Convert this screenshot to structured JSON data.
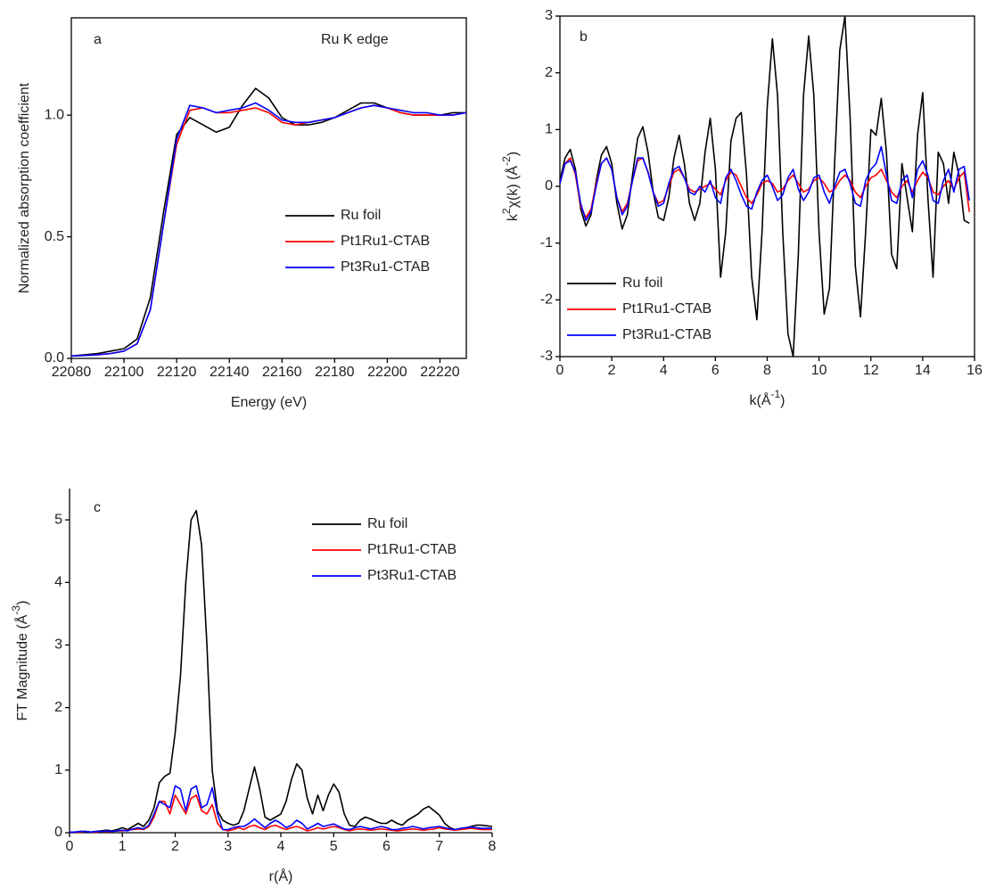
{
  "chart_data": [
    {
      "type": "line",
      "panel_label": "a",
      "annotation": "Ru K edge",
      "xlabel": "Energy (eV)",
      "ylabel": "Normalized absorption coefficient",
      "x": [
        22080,
        22085,
        22090,
        22095,
        22100,
        22105,
        22110,
        22115,
        22120,
        22125,
        22130,
        22135,
        22140,
        22145,
        22150,
        22155,
        22160,
        22165,
        22170,
        22175,
        22180,
        22185,
        22190,
        22195,
        22200,
        22205,
        22210,
        22215,
        22220,
        22225,
        22230
      ],
      "series": [
        {
          "name": "Ru foil",
          "color": "#000000",
          "values": [
            0.01,
            0.015,
            0.02,
            0.03,
            0.04,
            0.08,
            0.25,
            0.6,
            0.92,
            0.99,
            0.96,
            0.93,
            0.95,
            1.04,
            1.11,
            1.07,
            0.99,
            0.96,
            0.96,
            0.97,
            0.99,
            1.02,
            1.05,
            1.05,
            1.03,
            1.01,
            1.0,
            1.0,
            1.0,
            1.01,
            1.01
          ]
        },
        {
          "name": "Pt1Ru1-CTAB",
          "color": "#ff0000",
          "values": [
            0.01,
            0.012,
            0.015,
            0.02,
            0.03,
            0.06,
            0.2,
            0.55,
            0.88,
            1.02,
            1.03,
            1.01,
            1.01,
            1.02,
            1.03,
            1.01,
            0.97,
            0.96,
            0.97,
            0.98,
            0.99,
            1.01,
            1.03,
            1.04,
            1.03,
            1.01,
            1.0,
            1.0,
            1.0,
            1.0,
            1.01
          ]
        },
        {
          "name": "Pt3Ru1-CTAB",
          "color": "#0000ff",
          "values": [
            0.01,
            0.012,
            0.015,
            0.02,
            0.03,
            0.06,
            0.2,
            0.55,
            0.9,
            1.04,
            1.03,
            1.01,
            1.02,
            1.03,
            1.05,
            1.02,
            0.98,
            0.97,
            0.97,
            0.98,
            0.99,
            1.01,
            1.03,
            1.04,
            1.03,
            1.02,
            1.01,
            1.01,
            1.0,
            1.0,
            1.01
          ]
        }
      ],
      "xlim": [
        22080,
        22230
      ],
      "xticks": [
        22080,
        22100,
        22120,
        22140,
        22160,
        22180,
        22200,
        22220
      ],
      "ylim": [
        0,
        1.4
      ],
      "yticks": [
        {
          "value": 0,
          "label": "0.0"
        },
        {
          "value": 0.5,
          "label": "0.5"
        },
        {
          "value": 1,
          "label": "1.0"
        }
      ]
    },
    {
      "type": "line",
      "panel_label": "b",
      "xlabel": [
        "k(Å",
        "-1",
        ")"
      ],
      "ylabel": [
        "k",
        "2",
        "χ(k) (Å",
        "-2",
        ")"
      ],
      "x": [
        0,
        0.2,
        0.4,
        0.6,
        0.8,
        1.0,
        1.2,
        1.4,
        1.6,
        1.8,
        2.0,
        2.2,
        2.4,
        2.6,
        2.8,
        3.0,
        3.2,
        3.4,
        3.6,
        3.8,
        4.0,
        4.2,
        4.4,
        4.6,
        4.8,
        5.0,
        5.2,
        5.4,
        5.6,
        5.8,
        6.0,
        6.2,
        6.4,
        6.6,
        6.8,
        7.0,
        7.2,
        7.4,
        7.6,
        7.8,
        8.0,
        8.2,
        8.4,
        8.6,
        8.8,
        9.0,
        9.2,
        9.4,
        9.6,
        9.8,
        10.0,
        10.2,
        10.4,
        10.6,
        10.8,
        11.0,
        11.2,
        11.4,
        11.6,
        11.8,
        12.0,
        12.2,
        12.4,
        12.6,
        12.8,
        13.0,
        13.2,
        13.4,
        13.6,
        13.8,
        14.0,
        14.2,
        14.4,
        14.6,
        14.8,
        15.0,
        15.2,
        15.4,
        15.6,
        15.8
      ],
      "series": [
        {
          "name": "Ru foil",
          "color": "#000000",
          "values": [
            0.1,
            0.5,
            0.65,
            0.3,
            -0.4,
            -0.7,
            -0.5,
            0.1,
            0.55,
            0.7,
            0.4,
            -0.3,
            -0.75,
            -0.5,
            0.2,
            0.85,
            1.05,
            0.6,
            -0.1,
            -0.55,
            -0.6,
            -0.2,
            0.5,
            0.9,
            0.4,
            -0.3,
            -0.6,
            -0.3,
            0.6,
            1.2,
            0.3,
            -1.6,
            -0.8,
            0.8,
            1.2,
            1.3,
            0.2,
            -1.6,
            -2.35,
            -0.8,
            1.4,
            2.6,
            1.6,
            -0.8,
            -2.6,
            -3.0,
            -1.2,
            1.6,
            2.65,
            1.6,
            -0.8,
            -2.25,
            -1.8,
            0.4,
            2.4,
            3.0,
            1.2,
            -1.4,
            -2.3,
            -0.8,
            1.0,
            0.9,
            1.55,
            0.6,
            -1.2,
            -1.45,
            0.4,
            -0.2,
            -0.8,
            0.9,
            1.65,
            -0.2,
            -1.6,
            0.6,
            0.4,
            -0.3,
            0.6,
            0.2,
            -0.6,
            -0.65
          ]
        },
        {
          "name": "Pt1Ru1-CTAB",
          "color": "#ff0000",
          "values": [
            0.05,
            0.4,
            0.5,
            0.2,
            -0.35,
            -0.55,
            -0.4,
            0.05,
            0.4,
            0.5,
            0.3,
            -0.2,
            -0.45,
            -0.3,
            0.1,
            0.45,
            0.5,
            0.25,
            -0.1,
            -0.3,
            -0.25,
            0.0,
            0.25,
            0.3,
            0.15,
            -0.05,
            -0.1,
            -0.05,
            0.0,
            0.05,
            -0.05,
            -0.15,
            0.1,
            0.25,
            0.2,
            0.0,
            -0.2,
            -0.3,
            -0.15,
            0.05,
            0.1,
            0.05,
            -0.1,
            -0.05,
            0.1,
            0.2,
            0.05,
            -0.1,
            -0.05,
            0.1,
            0.15,
            0.05,
            -0.1,
            -0.05,
            0.1,
            0.2,
            0.1,
            -0.1,
            -0.2,
            0.0,
            0.15,
            0.2,
            0.3,
            0.1,
            -0.1,
            -0.2,
            0.0,
            0.1,
            -0.1,
            0.1,
            0.25,
            0.15,
            -0.1,
            -0.15,
            0.0,
            0.1,
            -0.05,
            0.15,
            0.25,
            -0.45
          ]
        },
        {
          "name": "Pt3Ru1-CTAB",
          "color": "#0000ff",
          "values": [
            0.05,
            0.4,
            0.45,
            0.25,
            -0.3,
            -0.6,
            -0.45,
            0.0,
            0.4,
            0.5,
            0.3,
            -0.2,
            -0.5,
            -0.35,
            0.1,
            0.5,
            0.5,
            0.25,
            -0.1,
            -0.35,
            -0.3,
            0.05,
            0.3,
            0.35,
            0.15,
            -0.1,
            -0.15,
            0.0,
            -0.1,
            0.1,
            -0.2,
            -0.3,
            0.15,
            0.3,
            0.1,
            -0.15,
            -0.35,
            -0.4,
            -0.1,
            0.1,
            0.2,
            0.0,
            -0.25,
            -0.15,
            0.15,
            0.3,
            -0.05,
            -0.25,
            -0.1,
            0.15,
            0.2,
            -0.1,
            -0.3,
            0.0,
            0.25,
            0.3,
            0.05,
            -0.3,
            -0.35,
            0.1,
            0.3,
            0.4,
            0.7,
            0.2,
            -0.25,
            -0.3,
            0.1,
            0.2,
            -0.2,
            0.3,
            0.45,
            0.2,
            -0.25,
            -0.3,
            0.1,
            0.3,
            -0.1,
            0.3,
            0.35,
            -0.25
          ]
        }
      ],
      "xlim": [
        0,
        16
      ],
      "xticks": [
        0,
        2,
        4,
        6,
        8,
        10,
        12,
        14,
        16
      ],
      "ylim": [
        -3,
        3
      ],
      "yticks": [
        -3,
        -2,
        -1,
        0,
        1,
        2,
        3
      ]
    },
    {
      "type": "line",
      "panel_label": "c",
      "xlabel": "r(Å)",
      "ylabel": [
        "FT Magnitude (Å",
        "-3",
        ")"
      ],
      "x": [
        0,
        0.1,
        0.2,
        0.3,
        0.4,
        0.5,
        0.6,
        0.7,
        0.8,
        0.9,
        1.0,
        1.1,
        1.2,
        1.3,
        1.4,
        1.5,
        1.6,
        1.7,
        1.8,
        1.9,
        2.0,
        2.1,
        2.2,
        2.3,
        2.4,
        2.5,
        2.6,
        2.7,
        2.8,
        2.9,
        3.0,
        3.1,
        3.2,
        3.3,
        3.4,
        3.5,
        3.6,
        3.7,
        3.8,
        3.9,
        4.0,
        4.1,
        4.2,
        4.3,
        4.4,
        4.5,
        4.6,
        4.7,
        4.8,
        4.9,
        5.0,
        5.1,
        5.2,
        5.3,
        5.4,
        5.5,
        5.6,
        5.7,
        5.8,
        5.9,
        6.0,
        6.1,
        6.2,
        6.3,
        6.4,
        6.5,
        6.6,
        6.7,
        6.8,
        6.9,
        7.0,
        7.1,
        7.2,
        7.3,
        7.4,
        7.5,
        7.6,
        7.7,
        7.8,
        7.9,
        8.0
      ],
      "series": [
        {
          "name": "Ru foil",
          "color": "#000000",
          "values": [
            0.01,
            0.01,
            0.02,
            0.02,
            0.01,
            0.02,
            0.03,
            0.04,
            0.03,
            0.05,
            0.08,
            0.05,
            0.1,
            0.15,
            0.1,
            0.2,
            0.4,
            0.8,
            0.9,
            0.95,
            1.6,
            2.5,
            4.0,
            5.0,
            5.15,
            4.6,
            3.0,
            1.0,
            0.35,
            0.2,
            0.15,
            0.12,
            0.15,
            0.35,
            0.7,
            1.05,
            0.7,
            0.25,
            0.2,
            0.25,
            0.3,
            0.5,
            0.85,
            1.1,
            1.0,
            0.55,
            0.3,
            0.6,
            0.35,
            0.6,
            0.78,
            0.65,
            0.3,
            0.12,
            0.1,
            0.2,
            0.25,
            0.22,
            0.18,
            0.15,
            0.15,
            0.2,
            0.15,
            0.12,
            0.2,
            0.25,
            0.3,
            0.38,
            0.42,
            0.35,
            0.28,
            0.15,
            0.08,
            0.05,
            0.05,
            0.08,
            0.1,
            0.12,
            0.12,
            0.11,
            0.1
          ]
        },
        {
          "name": "Pt1Ru1-CTAB",
          "color": "#ff0000",
          "values": [
            0.01,
            0.01,
            0.01,
            0.02,
            0.01,
            0.01,
            0.02,
            0.02,
            0.02,
            0.03,
            0.03,
            0.04,
            0.05,
            0.06,
            0.05,
            0.1,
            0.25,
            0.5,
            0.5,
            0.3,
            0.6,
            0.45,
            0.3,
            0.55,
            0.6,
            0.35,
            0.3,
            0.45,
            0.15,
            0.05,
            0.03,
            0.05,
            0.08,
            0.05,
            0.1,
            0.12,
            0.08,
            0.05,
            0.1,
            0.12,
            0.08,
            0.05,
            0.08,
            0.1,
            0.07,
            0.03,
            0.05,
            0.08,
            0.06,
            0.08,
            0.1,
            0.08,
            0.05,
            0.03,
            0.05,
            0.06,
            0.05,
            0.04,
            0.05,
            0.06,
            0.05,
            0.04,
            0.03,
            0.04,
            0.05,
            0.06,
            0.05,
            0.04,
            0.05,
            0.06,
            0.08,
            0.06,
            0.05,
            0.04,
            0.05,
            0.06,
            0.07,
            0.06,
            0.05,
            0.05,
            0.05
          ]
        },
        {
          "name": "Pt3Ru1-CTAB",
          "color": "#0000ff",
          "values": [
            0.01,
            0.01,
            0.02,
            0.02,
            0.01,
            0.02,
            0.02,
            0.03,
            0.02,
            0.03,
            0.04,
            0.03,
            0.06,
            0.08,
            0.06,
            0.12,
            0.3,
            0.5,
            0.45,
            0.4,
            0.75,
            0.7,
            0.35,
            0.7,
            0.75,
            0.4,
            0.45,
            0.72,
            0.3,
            0.05,
            0.05,
            0.08,
            0.1,
            0.1,
            0.15,
            0.22,
            0.15,
            0.08,
            0.15,
            0.2,
            0.15,
            0.08,
            0.12,
            0.2,
            0.15,
            0.06,
            0.1,
            0.15,
            0.1,
            0.12,
            0.14,
            0.1,
            0.06,
            0.05,
            0.08,
            0.1,
            0.08,
            0.06,
            0.08,
            0.1,
            0.08,
            0.05,
            0.05,
            0.07,
            0.08,
            0.1,
            0.08,
            0.06,
            0.08,
            0.09,
            0.1,
            0.08,
            0.06,
            0.05,
            0.07,
            0.08,
            0.09,
            0.08,
            0.07,
            0.07,
            0.07
          ]
        }
      ],
      "xlim": [
        0,
        8
      ],
      "xticks": [
        0,
        1,
        2,
        3,
        4,
        5,
        6,
        7,
        8
      ],
      "ylim": [
        0,
        5.5
      ],
      "yticks": [
        0,
        1,
        2,
        3,
        4,
        5
      ]
    }
  ]
}
